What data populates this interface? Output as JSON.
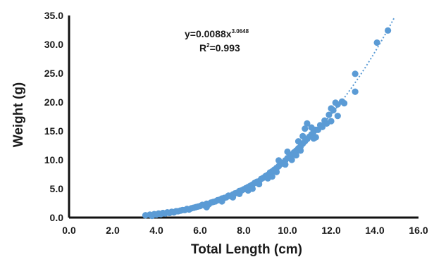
{
  "chart_data": {
    "type": "scatter",
    "xlabel": "Total Length (cm)",
    "ylabel": "Weight (g)",
    "xlim": [
      0,
      16
    ],
    "ylim": [
      0,
      35
    ],
    "x_ticks": [
      "0.0",
      "2.0",
      "4.0",
      "6.0",
      "8.0",
      "10.0",
      "12.0",
      "14.0",
      "16.0"
    ],
    "y_ticks": [
      "0.0",
      "5.0",
      "10.0",
      "15.0",
      "20.0",
      "25.0",
      "30.0",
      "35.0"
    ],
    "grid": false,
    "point_color": "#5b9bd5",
    "trendline": {
      "type": "power",
      "coefficient": 0.0088,
      "exponent": 3.0648,
      "r_squared": 0.993,
      "style": "dotted",
      "equation_label": "y=0.0088x",
      "equation_exponent_label": "3.0648",
      "r2_label": "R",
      "r2_sup": "2",
      "r2_value_label": "=0.993"
    },
    "points": [
      [
        3.5,
        0.4
      ],
      [
        3.7,
        0.5
      ],
      [
        3.8,
        0.3
      ],
      [
        3.9,
        0.6
      ],
      [
        4.0,
        0.5
      ],
      [
        4.1,
        0.7
      ],
      [
        4.2,
        0.6
      ],
      [
        4.3,
        0.8
      ],
      [
        4.4,
        0.7
      ],
      [
        4.5,
        0.9
      ],
      [
        4.6,
        0.8
      ],
      [
        4.7,
        1.0
      ],
      [
        4.8,
        0.9
      ],
      [
        4.9,
        1.1
      ],
      [
        5.0,
        1.1
      ],
      [
        5.1,
        1.2
      ],
      [
        5.2,
        1.3
      ],
      [
        5.3,
        1.3
      ],
      [
        5.4,
        1.5
      ],
      [
        5.5,
        1.4
      ],
      [
        5.6,
        1.6
      ],
      [
        5.7,
        1.7
      ],
      [
        5.8,
        1.8
      ],
      [
        5.9,
        1.9
      ],
      [
        6.0,
        2.0
      ],
      [
        6.1,
        2.2
      ],
      [
        6.2,
        2.1
      ],
      [
        6.3,
        2.4
      ],
      [
        6.4,
        2.3
      ],
      [
        6.5,
        2.6
      ],
      [
        6.6,
        2.7
      ],
      [
        6.7,
        2.8
      ],
      [
        6.8,
        3.0
      ],
      [
        6.9,
        3.1
      ],
      [
        7.0,
        3.3
      ],
      [
        7.1,
        3.4
      ],
      [
        7.2,
        3.5
      ],
      [
        7.3,
        3.8
      ],
      [
        7.4,
        3.7
      ],
      [
        7.5,
        4.0
      ],
      [
        7.6,
        4.2
      ],
      [
        7.7,
        4.3
      ],
      [
        7.8,
        4.6
      ],
      [
        7.9,
        4.7
      ],
      [
        8.0,
        4.9
      ],
      [
        8.1,
        5.1
      ],
      [
        8.2,
        5.3
      ],
      [
        8.3,
        5.5
      ],
      [
        8.4,
        5.7
      ],
      [
        8.5,
        6.0
      ],
      [
        8.6,
        6.2
      ],
      [
        8.7,
        6.3
      ],
      [
        8.8,
        6.7
      ],
      [
        8.9,
        6.9
      ],
      [
        9.0,
        7.2
      ],
      [
        9.1,
        7.4
      ],
      [
        9.2,
        7.8
      ],
      [
        9.3,
        8.0
      ],
      [
        9.4,
        8.3
      ],
      [
        9.5,
        8.6
      ],
      [
        9.6,
        8.9
      ],
      [
        9.7,
        9.3
      ],
      [
        9.8,
        9.5
      ],
      [
        9.9,
        9.9
      ],
      [
        10.0,
        10.3
      ],
      [
        10.1,
        10.5
      ],
      [
        10.2,
        10.9
      ],
      [
        10.3,
        11.3
      ],
      [
        10.4,
        11.6
      ],
      [
        10.5,
        12.0
      ],
      [
        10.6,
        12.3
      ],
      [
        10.7,
        12.8
      ],
      [
        10.8,
        13.2
      ],
      [
        10.9,
        13.6
      ],
      [
        11.0,
        14.0
      ],
      [
        11.1,
        14.4
      ],
      [
        11.2,
        14.9
      ],
      [
        11.3,
        15.2
      ],
      [
        11.5,
        16.0
      ],
      [
        11.7,
        16.8
      ],
      [
        11.9,
        17.8
      ],
      [
        12.1,
        18.6
      ],
      [
        12.3,
        19.6
      ],
      [
        12.5,
        20.1
      ],
      [
        12.6,
        19.8
      ],
      [
        13.1,
        21.8
      ],
      [
        13.1,
        24.9
      ],
      [
        14.1,
        30.3
      ],
      [
        14.6,
        32.4
      ],
      [
        6.3,
        1.8
      ],
      [
        7.0,
        2.8
      ],
      [
        7.5,
        3.5
      ],
      [
        8.2,
        4.7
      ],
      [
        8.7,
        5.8
      ],
      [
        9.1,
        6.8
      ],
      [
        9.5,
        7.9
      ],
      [
        9.9,
        9.2
      ],
      [
        10.0,
        11.4
      ],
      [
        10.2,
        10.0
      ],
      [
        10.4,
        10.8
      ],
      [
        10.6,
        11.6
      ],
      [
        10.8,
        15.4
      ],
      [
        10.9,
        16.3
      ],
      [
        11.2,
        13.7
      ],
      [
        11.4,
        15.2
      ],
      [
        11.6,
        15.7
      ],
      [
        11.8,
        16.3
      ],
      [
        12.0,
        18.9
      ],
      [
        12.2,
        19.9
      ],
      [
        12.0,
        16.7
      ],
      [
        12.3,
        17.6
      ],
      [
        9.3,
        7.1
      ],
      [
        9.6,
        9.9
      ],
      [
        10.5,
        13.2
      ],
      [
        10.7,
        14.1
      ],
      [
        11.1,
        15.6
      ],
      [
        11.3,
        13.9
      ],
      [
        8.4,
        5.0
      ],
      [
        7.8,
        4.1
      ]
    ]
  }
}
